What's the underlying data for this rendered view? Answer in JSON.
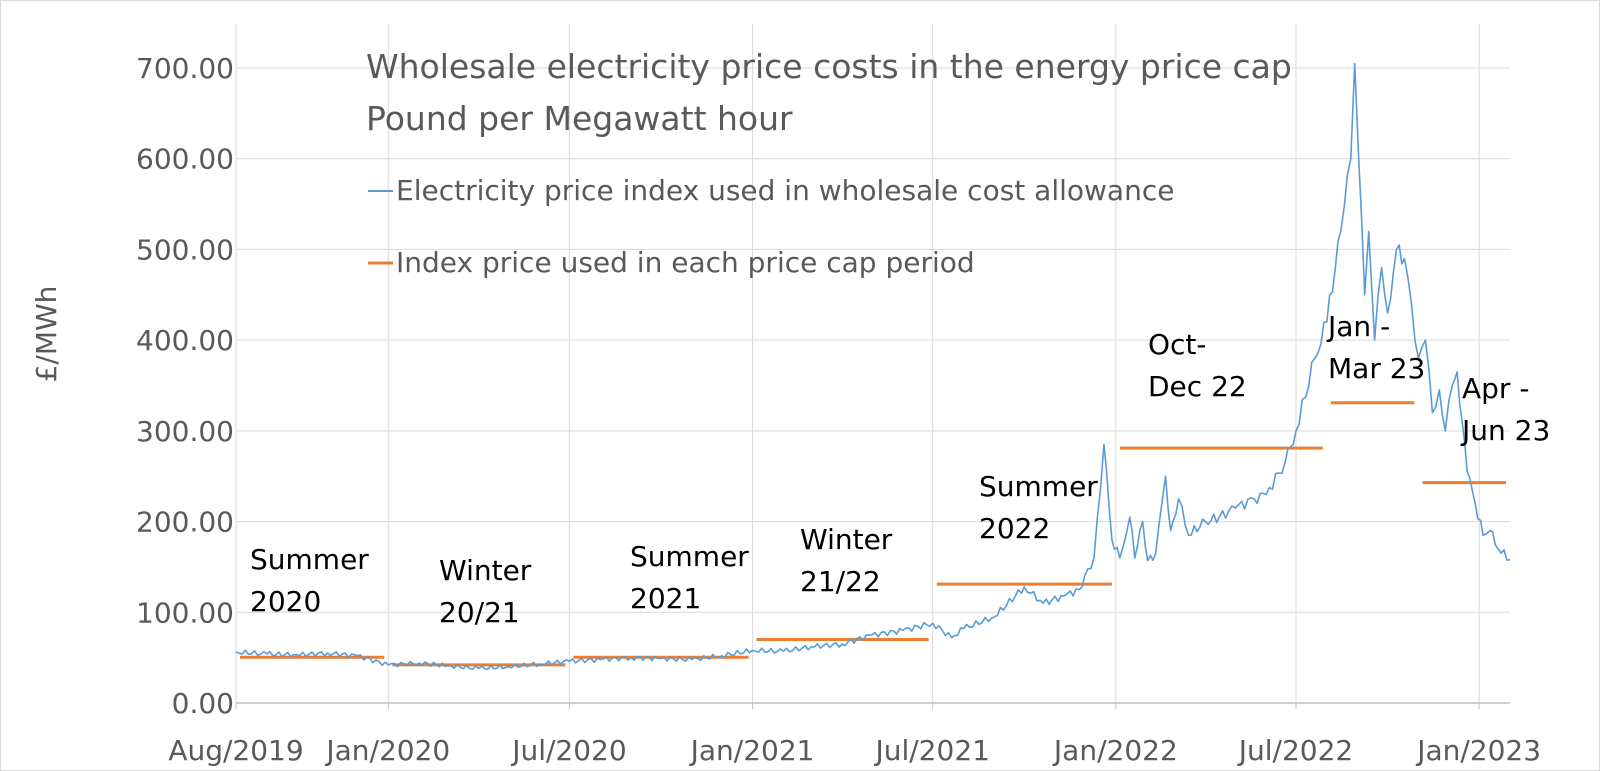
{
  "chart_data": {
    "type": "line",
    "title": "Wholesale electricity price costs in the energy price cap",
    "subtitle": "Pound per Megawatt hour",
    "ylabel": "£/MWh",
    "xlabel": "",
    "ylim": [
      0,
      700
    ],
    "yticks": [
      "0.00",
      "100.00",
      "200.00",
      "300.00",
      "400.00",
      "500.00",
      "600.00",
      "700.00"
    ],
    "xlim": [
      "2019-08-01",
      "2023-02-01"
    ],
    "xticks": [
      {
        "date": "2019-08-01",
        "label": "Aug/2019"
      },
      {
        "date": "2020-01-01",
        "label": "Jan/2020"
      },
      {
        "date": "2020-07-01",
        "label": "Jul/2020"
      },
      {
        "date": "2021-01-01",
        "label": "Jan/2021"
      },
      {
        "date": "2021-07-01",
        "label": "Jul/2021"
      },
      {
        "date": "2022-01-01",
        "label": "Jan/2022"
      },
      {
        "date": "2022-07-01",
        "label": "Jul/2022"
      },
      {
        "date": "2023-01-01",
        "label": "Jan/2023"
      }
    ],
    "grid": true,
    "legend_position": "top-left",
    "series": [
      {
        "name": "Electricity price index used in wholesale cost allowance",
        "color": "#5B9BD5",
        "points": [
          [
            "2019-08-01",
            56
          ],
          [
            "2019-09-01",
            54
          ],
          [
            "2019-10-01",
            53
          ],
          [
            "2019-11-01",
            55
          ],
          [
            "2019-12-01",
            52
          ],
          [
            "2020-01-01",
            42
          ],
          [
            "2020-02-01",
            44
          ],
          [
            "2020-03-01",
            41
          ],
          [
            "2020-04-01",
            38
          ],
          [
            "2020-05-01",
            40
          ],
          [
            "2020-06-01",
            43
          ],
          [
            "2020-07-01",
            46
          ],
          [
            "2020-08-01",
            48
          ],
          [
            "2020-09-01",
            50
          ],
          [
            "2020-10-01",
            49
          ],
          [
            "2020-11-01",
            48
          ],
          [
            "2020-12-01",
            52
          ],
          [
            "2021-01-01",
            58
          ],
          [
            "2021-02-01",
            57
          ],
          [
            "2021-03-01",
            62
          ],
          [
            "2021-04-01",
            65
          ],
          [
            "2021-05-01",
            75
          ],
          [
            "2021-06-01",
            80
          ],
          [
            "2021-07-01",
            88
          ],
          [
            "2021-07-20",
            72
          ],
          [
            "2021-08-01",
            82
          ],
          [
            "2021-09-01",
            95
          ],
          [
            "2021-10-01",
            128
          ],
          [
            "2021-10-20",
            110
          ],
          [
            "2021-11-10",
            118
          ],
          [
            "2021-11-25",
            125
          ],
          [
            "2021-12-10",
            160
          ],
          [
            "2021-12-20",
            285
          ],
          [
            "2021-12-28",
            180
          ],
          [
            "2022-01-05",
            160
          ],
          [
            "2022-01-15",
            205
          ],
          [
            "2022-01-20",
            160
          ],
          [
            "2022-01-28",
            200
          ],
          [
            "2022-02-02",
            157
          ],
          [
            "2022-02-10",
            165
          ],
          [
            "2022-02-20",
            250
          ],
          [
            "2022-02-25",
            190
          ],
          [
            "2022-03-05",
            225
          ],
          [
            "2022-03-15",
            185
          ],
          [
            "2022-04-01",
            200
          ],
          [
            "2022-04-15",
            205
          ],
          [
            "2022-05-01",
            215
          ],
          [
            "2022-05-20",
            225
          ],
          [
            "2022-06-01",
            230
          ],
          [
            "2022-06-20",
            265
          ],
          [
            "2022-07-01",
            300
          ],
          [
            "2022-07-20",
            380
          ],
          [
            "2022-08-01",
            420
          ],
          [
            "2022-08-15",
            520
          ],
          [
            "2022-08-25",
            600
          ],
          [
            "2022-08-29",
            705
          ],
          [
            "2022-09-02",
            600
          ],
          [
            "2022-09-08",
            450
          ],
          [
            "2022-09-12",
            520
          ],
          [
            "2022-09-18",
            400
          ],
          [
            "2022-09-25",
            480
          ],
          [
            "2022-10-01",
            430
          ],
          [
            "2022-10-10",
            500
          ],
          [
            "2022-10-18",
            490
          ],
          [
            "2022-10-25",
            440
          ],
          [
            "2022-11-01",
            380
          ],
          [
            "2022-11-08",
            400
          ],
          [
            "2022-11-15",
            320
          ],
          [
            "2022-11-22",
            345
          ],
          [
            "2022-11-28",
            300
          ],
          [
            "2022-12-05",
            350
          ],
          [
            "2022-12-10",
            365
          ],
          [
            "2022-12-15",
            310
          ],
          [
            "2022-12-20",
            255
          ],
          [
            "2022-12-28",
            220
          ],
          [
            "2023-01-05",
            185
          ],
          [
            "2023-01-12",
            190
          ],
          [
            "2023-01-20",
            170
          ],
          [
            "2023-02-01",
            158
          ]
        ]
      },
      {
        "name": "Index price used in each price cap period",
        "color": "#ED7D31",
        "segments": [
          {
            "start": "2019-08-01",
            "end": "2020-01-01",
            "value": 50.5
          },
          {
            "start": "2020-01-01",
            "end": "2020-07-01",
            "value": 42
          },
          {
            "start": "2020-07-01",
            "end": "2021-01-01",
            "value": 50.5
          },
          {
            "start": "2021-01-01",
            "end": "2021-07-01",
            "value": 70
          },
          {
            "start": "2021-07-01",
            "end": "2022-01-01",
            "value": 131
          },
          {
            "start": "2022-01-01",
            "end": "2022-08-01",
            "value": 281
          },
          {
            "start": "2022-08-01",
            "end": "2022-11-01",
            "value": 331
          },
          {
            "start": "2022-11-01",
            "end": "2023-02-01",
            "value": 243
          }
        ]
      }
    ],
    "annotations": [
      {
        "lines": [
          "Summer",
          "2020"
        ]
      },
      {
        "lines": [
          "Winter",
          "20/21"
        ]
      },
      {
        "lines": [
          "Summer",
          "2021"
        ]
      },
      {
        "lines": [
          "Winter",
          "21/22"
        ]
      },
      {
        "lines": [
          "Summer",
          "2022"
        ]
      },
      {
        "lines": [
          "Oct-",
          "Dec 22"
        ]
      },
      {
        "lines": [
          "Jan -",
          "Mar 23"
        ]
      },
      {
        "lines": [
          "Apr -",
          "Jun 23"
        ]
      }
    ]
  }
}
